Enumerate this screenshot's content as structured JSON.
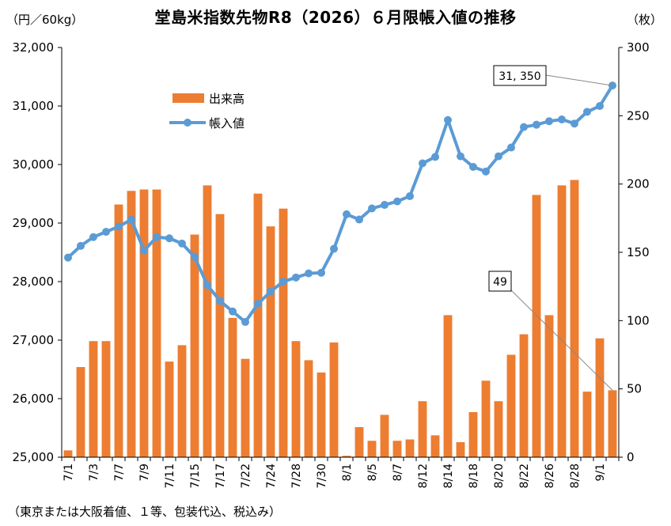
{
  "title": "堂島米指数先物R8（2026）６月限帳入値の推移",
  "left_unit": "（円／60kg）",
  "right_unit": "（枚）",
  "footnote": "（東京または大阪着値、１等、包装代込、税込み）",
  "colors": {
    "bar": "#ED7D31",
    "line": "#5B9BD5",
    "axis": "#000000",
    "grid": "#ffffff"
  },
  "chart_data": {
    "type": "bar+line",
    "categories": [
      "7/1",
      "7/2",
      "7/3",
      "7/4",
      "7/7",
      "7/8",
      "7/9",
      "7/10",
      "7/11",
      "7/14",
      "7/15",
      "7/16",
      "7/17",
      "7/18",
      "7/22",
      "7/23",
      "7/24",
      "7/25",
      "7/28",
      "7/29",
      "7/30",
      "7/31",
      "8/1",
      "8/4",
      "8/5",
      "8/6",
      "8/7",
      "8/8",
      "8/12",
      "8/13",
      "8/14",
      "8/15",
      "8/18",
      "8/19",
      "8/20",
      "8/21",
      "8/22",
      "8/25",
      "8/26",
      "8/27",
      "8/28",
      "8/29",
      "9/1",
      "9/2"
    ],
    "x_tick_labels": [
      "7/1",
      "7/3",
      "7/7",
      "7/9",
      "7/11",
      "7/15",
      "7/17",
      "7/22",
      "7/24",
      "7/28",
      "7/30",
      "8/1",
      "8/5",
      "8/7",
      "8/12",
      "8/14",
      "8/18",
      "8/20",
      "8/22",
      "8/26",
      "8/28",
      "9/1"
    ],
    "series": [
      {
        "name": "出来高",
        "type": "bar",
        "axis": "right",
        "values": [
          5,
          66,
          85,
          85,
          185,
          195,
          196,
          196,
          70,
          82,
          163,
          199,
          178,
          102,
          72,
          193,
          169,
          182,
          85,
          71,
          62,
          84,
          1,
          22,
          12,
          31,
          12,
          13,
          41,
          16,
          104,
          11,
          33,
          56,
          41,
          75,
          90,
          192,
          104,
          199,
          203,
          48,
          87,
          49
        ]
      },
      {
        "name": "帳入値",
        "type": "line",
        "axis": "left",
        "values": [
          28410,
          28610,
          28760,
          28850,
          28940,
          29060,
          28530,
          28760,
          28740,
          28650,
          28420,
          27940,
          27670,
          27490,
          27310,
          27620,
          27830,
          28000,
          28070,
          28140,
          28150,
          28560,
          29150,
          29060,
          29250,
          29310,
          29370,
          29460,
          30020,
          30130,
          30760,
          30140,
          29960,
          29880,
          30140,
          30290,
          30640,
          30680,
          30740,
          30770,
          30700,
          30900,
          31000,
          31350
        ]
      }
    ],
    "left_axis": {
      "min": 25000,
      "max": 32000,
      "step": 1000,
      "tick_labels": [
        "25,000",
        "26,000",
        "27,000",
        "28,000",
        "29,000",
        "30,000",
        "31,000",
        "32,000"
      ]
    },
    "right_axis": {
      "min": 0,
      "max": 300,
      "step": 50,
      "tick_labels": [
        "0",
        "50",
        "100",
        "150",
        "200",
        "250",
        "300"
      ]
    },
    "annotations": [
      {
        "text": "31, 350",
        "series": "帳入値",
        "index": 43
      },
      {
        "text": "49",
        "series": "出来高",
        "index": 43
      }
    ],
    "legend": {
      "position": "top-left",
      "entries": [
        "出来高",
        "帳入値"
      ]
    },
    "grid": false
  }
}
